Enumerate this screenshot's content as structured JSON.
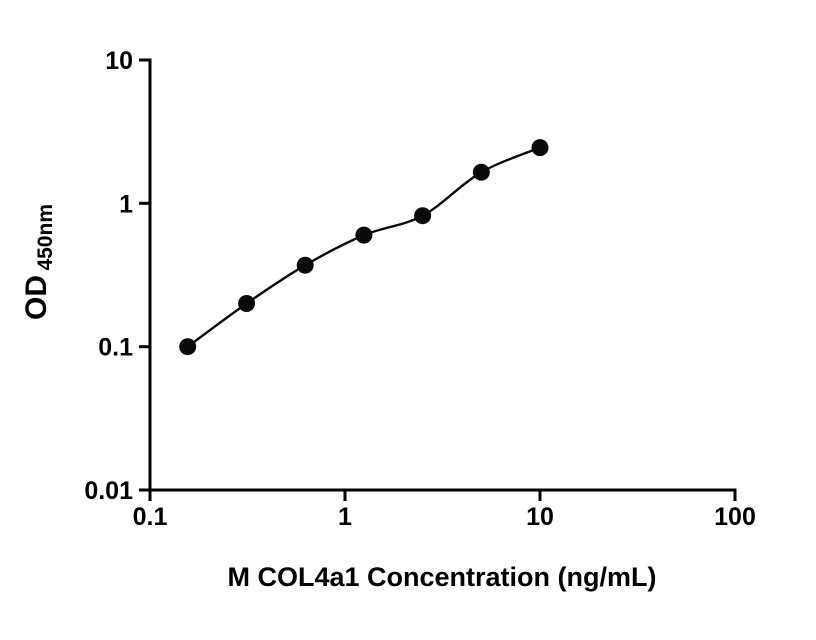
{
  "chart_data": {
    "type": "scatter",
    "title": "",
    "xlabel": "M COL4a1 Concentration (ng/mL)",
    "ylabel_main": "OD",
    "ylabel_sub": "450nm",
    "x_scale": "log",
    "y_scale": "log",
    "xlim": [
      0.1,
      100
    ],
    "ylim": [
      0.01,
      10
    ],
    "x_ticks": [
      0.1,
      1,
      10,
      100
    ],
    "x_tick_labels": [
      "0.1",
      "1",
      "10",
      "100"
    ],
    "y_ticks": [
      0.01,
      0.1,
      1,
      10
    ],
    "y_tick_labels": [
      "0.01",
      "0.1",
      "1",
      "10"
    ],
    "x": [
      0.156,
      0.313,
      0.625,
      1.25,
      2.5,
      5,
      10
    ],
    "y": [
      0.1,
      0.2,
      0.37,
      0.6,
      0.82,
      1.65,
      2.45
    ],
    "line": true,
    "grid": false,
    "legend": "none",
    "marker_color": "#0a0a0a",
    "line_color": "#0a0a0a",
    "axis_color": "#000000",
    "background": "#ffffff"
  }
}
